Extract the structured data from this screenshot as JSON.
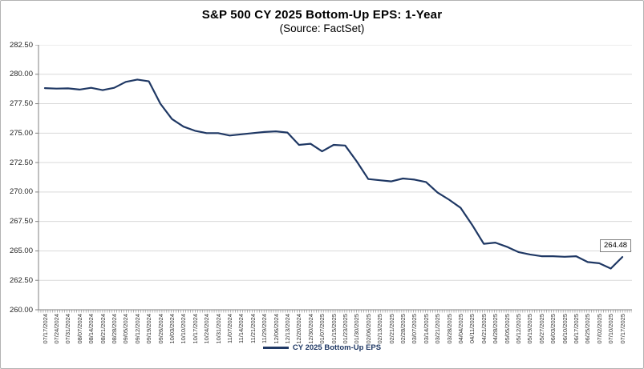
{
  "chart_data": {
    "type": "line",
    "title": "S&P 500 CY 2025 Bottom-Up EPS: 1-Year",
    "subtitle": "(Source: FactSet)",
    "categories": [
      "07/17/2024",
      "07/24/2024",
      "07/31/2024",
      "08/07/2024",
      "08/14/2024",
      "08/21/2024",
      "08/28/2024",
      "09/05/2024",
      "09/12/2024",
      "09/19/2024",
      "09/26/2024",
      "10/03/2024",
      "10/10/2024",
      "10/17/2024",
      "10/24/2024",
      "10/31/2024",
      "11/07/2024",
      "11/14/2024",
      "11/21/2024",
      "11/29/2024",
      "12/06/2024",
      "12/13/2024",
      "12/20/2024",
      "12/30/2024",
      "01/07/2025",
      "01/15/2025",
      "01/23/2025",
      "01/30/2025",
      "02/06/2025",
      "02/13/2025",
      "02/21/2025",
      "02/28/2025",
      "03/07/2025",
      "03/14/2025",
      "03/21/2025",
      "03/28/2025",
      "04/04/2025",
      "04/11/2025",
      "04/21/2025",
      "04/28/2025",
      "05/05/2025",
      "05/12/2025",
      "05/19/2025",
      "05/27/2025",
      "06/03/2025",
      "06/10/2025",
      "06/17/2025",
      "06/25/2025",
      "07/02/2025",
      "07/10/2025",
      "07/17/2025"
    ],
    "series": [
      {
        "name": "CY 2025 Bottom-Up EPS",
        "values": [
          278.82,
          278.78,
          278.8,
          278.7,
          278.85,
          278.65,
          278.85,
          279.35,
          279.55,
          279.4,
          277.5,
          276.2,
          275.55,
          275.2,
          275.0,
          275.0,
          274.8,
          274.9,
          275.0,
          275.1,
          275.15,
          275.05,
          274.0,
          274.1,
          273.45,
          274.0,
          273.95,
          272.6,
          271.1,
          271.0,
          270.9,
          271.15,
          271.05,
          270.85,
          269.95,
          269.35,
          268.65,
          267.2,
          265.6,
          265.7,
          265.35,
          264.9,
          264.7,
          264.55,
          264.55,
          264.5,
          264.55,
          264.05,
          263.95,
          263.5,
          264.48
        ]
      }
    ],
    "ylim": [
      260.0,
      282.5
    ],
    "ytick_step": 2.5,
    "ytick_labels": [
      "282.50",
      "280.00",
      "277.50",
      "275.00",
      "272.50",
      "270.00",
      "267.50",
      "265.00",
      "262.50",
      "260.00"
    ],
    "grid": true,
    "legend_position": "bottom",
    "end_label": "264.48",
    "xlabel": "",
    "ylabel": "",
    "colors": {
      "line": "#1f3864",
      "grid": "#d9d9d9",
      "axis": "#808080",
      "y_label_text": "#262626",
      "x_label_text": "#333333",
      "title_text": "#000000",
      "annotation_border": "#7f7f7f",
      "background": "#ffffff"
    }
  }
}
